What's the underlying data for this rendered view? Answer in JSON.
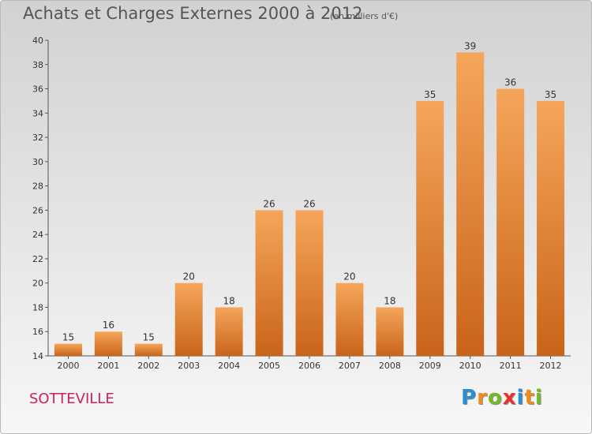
{
  "title": "Achats et Charges Externes 2000 à 2012",
  "subtitle": "(en milliers d'€)",
  "commune": "SOTTEVILLE",
  "logo": {
    "letters": [
      "P",
      "r",
      "o",
      "x",
      "i",
      "t",
      "i"
    ],
    "colors": [
      "#2a8ed1",
      "#f08a1c",
      "#73b82a",
      "#e8312f",
      "#2a8ed1",
      "#f08a1c",
      "#73b82a"
    ]
  },
  "colors": {
    "bar_light": "#f5a65a",
    "bar_dark": "#c9641a",
    "axis": "#555555"
  },
  "chart_data": {
    "type": "bar",
    "title": "Achats et Charges Externes 2000 à 2012",
    "subtitle": "(en milliers d'€)",
    "categories": [
      "2000",
      "2001",
      "2002",
      "2003",
      "2004",
      "2005",
      "2006",
      "2007",
      "2008",
      "2009",
      "2010",
      "2011",
      "2012"
    ],
    "values": [
      15,
      16,
      15,
      20,
      18,
      26,
      26,
      20,
      18,
      35,
      39,
      36,
      35
    ],
    "ylim": [
      14,
      40
    ],
    "yticks": [
      14,
      16,
      18,
      20,
      22,
      24,
      26,
      28,
      30,
      32,
      34,
      36,
      38,
      40
    ],
    "grid": false,
    "legend": "none"
  }
}
